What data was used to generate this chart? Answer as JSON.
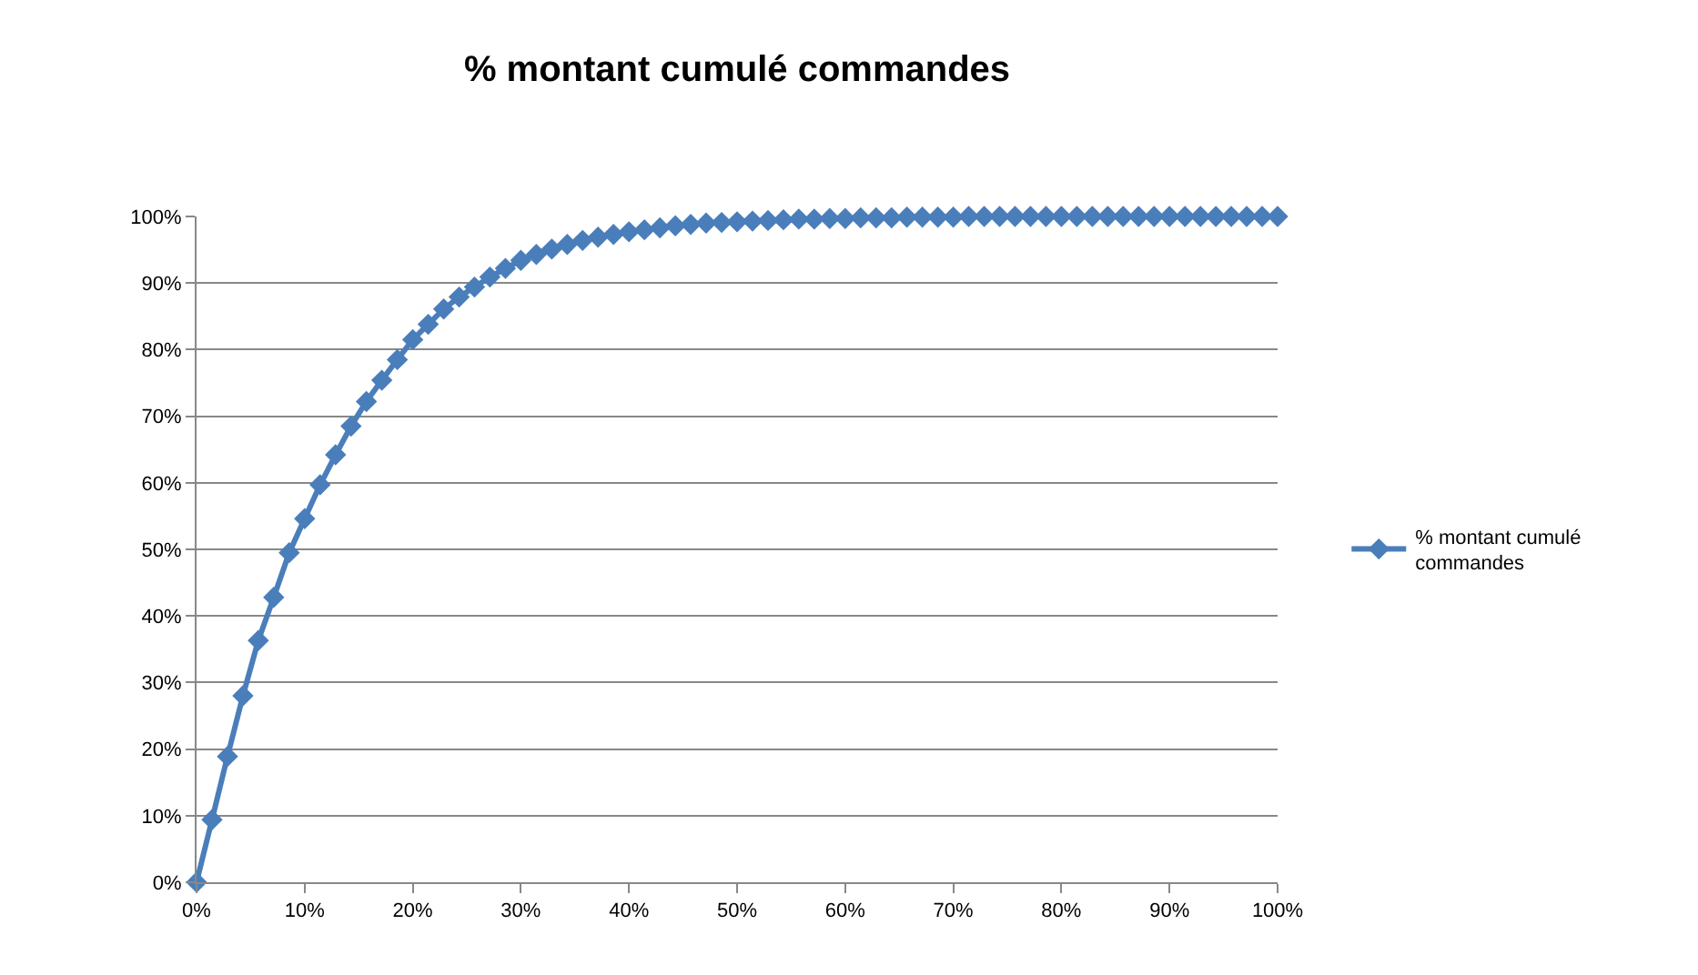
{
  "chart_data": {
    "type": "line",
    "title": "% montant cumulé commandes",
    "x": [
      0,
      1.43,
      2.86,
      4.29,
      5.71,
      7.14,
      8.57,
      10,
      11.43,
      12.86,
      14.29,
      15.71,
      17.14,
      18.57,
      20,
      21.43,
      22.86,
      24.29,
      25.71,
      27.14,
      28.57,
      30,
      31.43,
      32.86,
      34.29,
      35.71,
      37.14,
      38.57,
      40,
      41.43,
      42.86,
      44.29,
      45.71,
      47.14,
      48.57,
      50,
      51.43,
      52.86,
      54.29,
      55.71,
      57.14,
      58.57,
      60,
      61.43,
      62.86,
      64.29,
      65.71,
      67.14,
      68.57,
      70,
      71.43,
      72.86,
      74.29,
      75.71,
      77.14,
      78.57,
      80,
      81.43,
      82.86,
      84.29,
      85.71,
      87.14,
      88.57,
      90,
      91.43,
      92.86,
      94.29,
      95.71,
      97.14,
      98.57,
      100
    ],
    "series": [
      {
        "name": "% montant cumulé commandes",
        "color": "#4a7ebb",
        "values": [
          0,
          9.4,
          18.9,
          28.0,
          36.3,
          42.8,
          49.5,
          54.6,
          59.7,
          64.2,
          68.5,
          72.2,
          75.4,
          78.5,
          81.5,
          83.8,
          86.1,
          87.9,
          89.4,
          90.9,
          92.2,
          93.4,
          94.3,
          95.1,
          95.8,
          96.4,
          96.9,
          97.3,
          97.7,
          98.0,
          98.3,
          98.6,
          98.8,
          99.0,
          99.1,
          99.2,
          99.3,
          99.4,
          99.5,
          99.6,
          99.6,
          99.7,
          99.7,
          99.8,
          99.8,
          99.8,
          99.9,
          99.9,
          99.9,
          99.9,
          100,
          100,
          100,
          100,
          100,
          100,
          100,
          100,
          100,
          100,
          100,
          100,
          100,
          100,
          100,
          100,
          100,
          100,
          100,
          100,
          100
        ]
      }
    ],
    "xlim": [
      0,
      100
    ],
    "ylim": [
      0,
      100
    ],
    "xticks": [
      {
        "value": 0,
        "label": "0%"
      },
      {
        "value": 10,
        "label": "10%"
      },
      {
        "value": 20,
        "label": "20%"
      },
      {
        "value": 30,
        "label": "30%"
      },
      {
        "value": 40,
        "label": "40%"
      },
      {
        "value": 50,
        "label": "50%"
      },
      {
        "value": 60,
        "label": "60%"
      },
      {
        "value": 70,
        "label": "70%"
      },
      {
        "value": 80,
        "label": "80%"
      },
      {
        "value": 90,
        "label": "90%"
      },
      {
        "value": 100,
        "label": "100%"
      }
    ],
    "yticks": [
      {
        "value": 0,
        "label": "0%"
      },
      {
        "value": 10,
        "label": "10%"
      },
      {
        "value": 20,
        "label": "20%"
      },
      {
        "value": 30,
        "label": "30%"
      },
      {
        "value": 40,
        "label": "40%"
      },
      {
        "value": 50,
        "label": "50%"
      },
      {
        "value": 60,
        "label": "60%"
      },
      {
        "value": 70,
        "label": "70%"
      },
      {
        "value": 80,
        "label": "80%"
      },
      {
        "value": 90,
        "label": "90%"
      },
      {
        "value": 100,
        "label": "100%"
      }
    ],
    "grid": "y",
    "legend": "right",
    "marker": "diamond",
    "line_style": "solid"
  }
}
